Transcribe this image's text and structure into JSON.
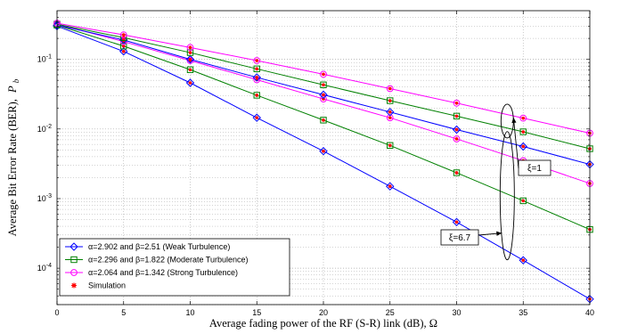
{
  "chart_data": {
    "type": "line",
    "xlabel": "Average fading power of the RF (S-R) link (dB), Ω",
    "ylabel": "Average Bit Error Rate (BER),",
    "ylabel_symbol": "P",
    "ylabel_subscript": "b",
    "xlim": [
      0,
      40
    ],
    "ylim": [
      3e-05,
      0.5
    ],
    "yscale": "log",
    "grid": true,
    "legend_position": "bottom-left",
    "x_ticks": [
      0,
      5,
      10,
      15,
      20,
      25,
      30,
      35,
      40
    ],
    "y_ticks": [
      {
        "value": 0.1,
        "base": "10",
        "exp": "-1"
      },
      {
        "value": 0.01,
        "base": "10",
        "exp": "-2"
      },
      {
        "value": 0.001,
        "base": "10",
        "exp": "-3"
      },
      {
        "value": 0.0001,
        "base": "10",
        "exp": "-4"
      }
    ],
    "x": [
      0,
      5,
      10,
      15,
      20,
      25,
      30,
      35,
      40
    ],
    "series": [
      {
        "name": "α=2.902 and β=2.51 (Weak Turbulence)",
        "xi": 6.7,
        "color": "#0000ff",
        "marker": "diamond",
        "values": [
          0.3,
          0.13,
          0.046,
          0.0145,
          0.0048,
          0.0015,
          0.00046,
          0.00013,
          3.6e-05
        ]
      },
      {
        "name": "α=2.296 and β=1.822 (Moderate Turbulence)",
        "xi": 6.7,
        "color": "#008000",
        "marker": "square",
        "values": [
          0.31,
          0.155,
          0.071,
          0.0305,
          0.0134,
          0.0058,
          0.00235,
          0.00093,
          0.00036
        ]
      },
      {
        "name": "α=2.064 and β=1.342 (Strong Turbulence)",
        "xi": 6.7,
        "color": "#ff00ff",
        "marker": "circle",
        "values": [
          0.32,
          0.18,
          0.096,
          0.051,
          0.027,
          0.0145,
          0.0072,
          0.0035,
          0.00165
        ]
      },
      {
        "name": "",
        "xi": 1,
        "color": "#0000ff",
        "marker": "diamond",
        "values": [
          0.31,
          0.19,
          0.1,
          0.055,
          0.031,
          0.0175,
          0.0098,
          0.0056,
          0.0031
        ]
      },
      {
        "name": "",
        "xi": 1,
        "color": "#008000",
        "marker": "square",
        "values": [
          0.32,
          0.205,
          0.125,
          0.073,
          0.043,
          0.0255,
          0.0153,
          0.0091,
          0.0052
        ]
      },
      {
        "name": "",
        "xi": 1,
        "color": "#ff00ff",
        "marker": "circle",
        "values": [
          0.33,
          0.225,
          0.148,
          0.096,
          0.061,
          0.038,
          0.0235,
          0.0143,
          0.0087
        ]
      }
    ],
    "legend": [
      {
        "label": "α=2.902 and β=2.51 (Weak Turbulence)",
        "color": "#0000ff",
        "marker": "diamond"
      },
      {
        "label": "α=2.296 and β=1.822 (Moderate Turbulence)",
        "color": "#008000",
        "marker": "square"
      },
      {
        "label": "α=2.064 and β=1.342 (Strong Turbulence)",
        "color": "#ff00ff",
        "marker": "circle"
      },
      {
        "label": "Simulation",
        "color": "#ff0000",
        "marker": "asterisk"
      }
    ],
    "annotations": [
      {
        "label": "ξ=1",
        "x": 33.8,
        "y": 0.013
      },
      {
        "label": "ξ=6.7",
        "x": 33.8,
        "y": 0.0011
      }
    ],
    "simulation_marker_color": "#ff0000"
  }
}
